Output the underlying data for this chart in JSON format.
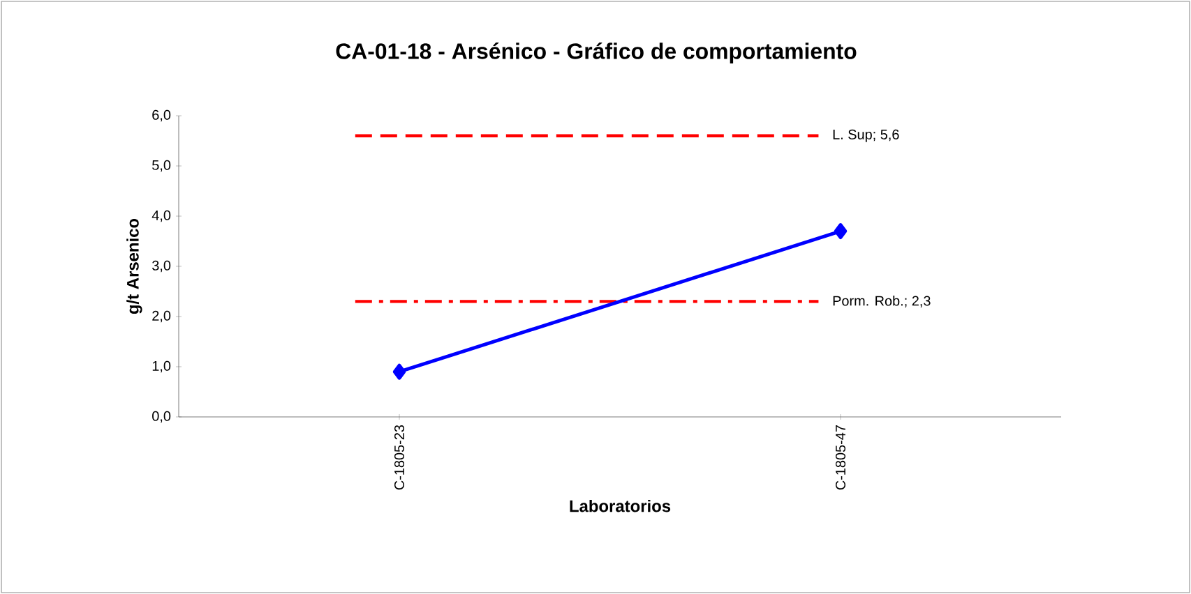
{
  "chart_data": {
    "type": "line",
    "title": "CA-01-18 - Arsénico - Gráfico de comportamiento",
    "xlabel": "Laboratorios",
    "ylabel": "g/t Arsenico",
    "categories": [
      "C-1805-23",
      "C-1805-47"
    ],
    "series": [
      {
        "color": "#0000ff",
        "values": [
          0.9,
          3.7
        ]
      }
    ],
    "ylim": [
      0,
      6
    ],
    "yticks": [
      {
        "value": 0,
        "label": "0,0"
      },
      {
        "value": 1,
        "label": "1,0"
      },
      {
        "value": 2,
        "label": "2,0"
      },
      {
        "value": 3,
        "label": "3,0"
      },
      {
        "value": 4,
        "label": "4,0"
      },
      {
        "value": 5,
        "label": "5,0"
      },
      {
        "value": 6,
        "label": "6,0"
      }
    ],
    "ref_lines": [
      {
        "axis": "y",
        "value": 5.6,
        "label": "L. Sup; 5,6",
        "color": "#ff0000",
        "line_style": "dashed"
      },
      {
        "axis": "y",
        "value": 2.3,
        "label": "Porm. Rob.; 2,3",
        "color": "#ff0000",
        "line_style": "dashdot"
      }
    ],
    "grid": false,
    "marker": "diamond",
    "line_style": "solid"
  }
}
